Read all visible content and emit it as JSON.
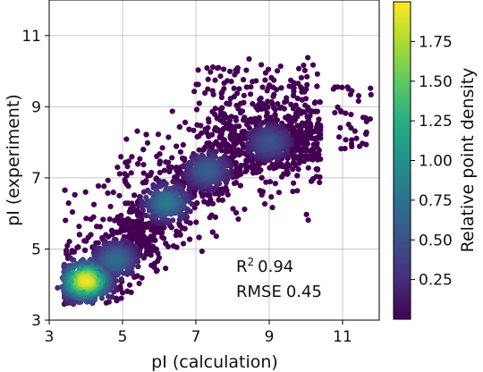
{
  "chart_data": {
    "type": "scatter",
    "title": "",
    "xlabel": "pI (calculation)",
    "ylabel": "pI (experiment)",
    "xlim": [
      3,
      12
    ],
    "ylim": [
      3,
      12
    ],
    "xticks": [
      3,
      5,
      7,
      9,
      11
    ],
    "yticks": [
      3,
      5,
      7,
      9,
      11
    ],
    "grid": true,
    "colormap": "viridis",
    "point_color_low": "#440154",
    "colorbar": {
      "label": "Relative point density",
      "min": 0.0,
      "max": 2.0,
      "ticks": [
        "0.25",
        "0.50",
        "0.75",
        "1.00",
        "1.25",
        "1.50",
        "1.75"
      ]
    },
    "annotation": {
      "r2_label": "R",
      "r2_sup": "2",
      "r2_value": "0.94",
      "rmse_label": "RMSE",
      "rmse_value": "0.45"
    },
    "density_trend": [
      {
        "x": 3.5,
        "y": 3.6
      },
      {
        "x": 4.0,
        "y": 3.9
      },
      {
        "x": 4.8,
        "y": 4.7
      },
      {
        "x": 5.5,
        "y": 5.5
      },
      {
        "x": 6.3,
        "y": 6.3
      },
      {
        "x": 7.0,
        "y": 6.9
      },
      {
        "x": 7.8,
        "y": 7.6
      },
      {
        "x": 9.0,
        "y": 8.1
      }
    ],
    "density_peaks": [
      {
        "x": 4.0,
        "y": 4.1,
        "density": 1.95
      },
      {
        "x": 4.8,
        "y": 4.7,
        "density": 0.7
      },
      {
        "x": 6.2,
        "y": 6.3,
        "density": 0.8
      },
      {
        "x": 7.3,
        "y": 7.2,
        "density": 0.6
      },
      {
        "x": 9.0,
        "y": 8.0,
        "density": 0.5
      }
    ]
  }
}
